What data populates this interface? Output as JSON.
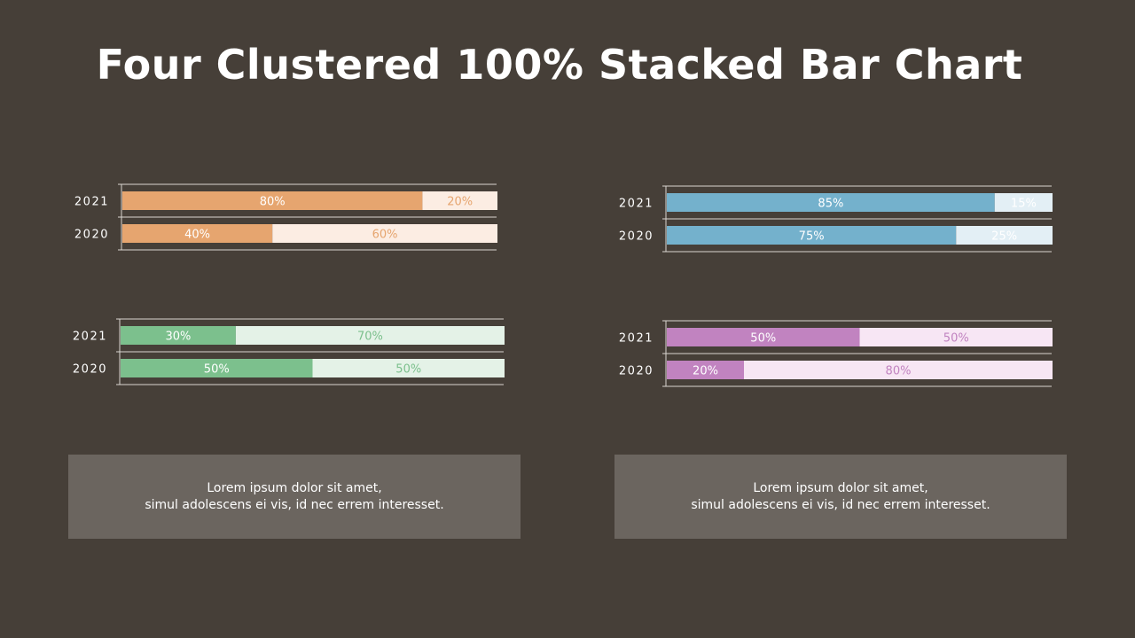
{
  "title": "Four Clustered 100% Stacked Bar Chart",
  "chart_data": [
    {
      "type": "bar",
      "orientation": "horizontal",
      "stacked": "percent",
      "categories": [
        "2021",
        "2020"
      ],
      "series": [
        {
          "values": [
            80,
            40
          ],
          "labels": [
            "80%",
            "40%"
          ],
          "color": "#e6a56f",
          "label_color": "#ffffff"
        },
        {
          "values": [
            20,
            60
          ],
          "labels": [
            "20%",
            "60%"
          ],
          "color": "#fcede3",
          "label_color": "#e6a56f"
        }
      ]
    },
    {
      "type": "bar",
      "orientation": "horizontal",
      "stacked": "percent",
      "categories": [
        "2021",
        "2020"
      ],
      "series": [
        {
          "values": [
            85,
            75
          ],
          "labels": [
            "85%",
            "75%"
          ],
          "color": "#74b1cc",
          "label_color": "#ffffff"
        },
        {
          "values": [
            15,
            25
          ],
          "labels": [
            "15%",
            "25%"
          ],
          "color": "#e3eff5",
          "label_color": "#ffffff"
        }
      ]
    },
    {
      "type": "bar",
      "orientation": "horizontal",
      "stacked": "percent",
      "categories": [
        "2021",
        "2020"
      ],
      "series": [
        {
          "values": [
            30,
            50
          ],
          "labels": [
            "30%",
            "50%"
          ],
          "color": "#7cc08d",
          "label_color": "#ffffff"
        },
        {
          "values": [
            70,
            50
          ],
          "labels": [
            "70%",
            "50%"
          ],
          "color": "#e4f2e7",
          "label_color": "#7cc08d"
        }
      ]
    },
    {
      "type": "bar",
      "orientation": "horizontal",
      "stacked": "percent",
      "categories": [
        "2021",
        "2020"
      ],
      "series": [
        {
          "values": [
            50,
            20
          ],
          "labels": [
            "50%",
            "20%"
          ],
          "color": "#c183c0",
          "label_color": "#ffffff"
        },
        {
          "values": [
            50,
            80
          ],
          "labels": [
            "50%",
            "80%"
          ],
          "color": "#f7e6f4",
          "label_color": "#c183c0"
        }
      ]
    }
  ],
  "notes": [
    {
      "line1": "Lorem ipsum dolor sit amet,",
      "line2": "simul adolescens ei vis, id nec errem interesset."
    },
    {
      "line1": "Lorem ipsum dolor sit amet,",
      "line2": "simul adolescens ei vis, id nec errem interesset."
    }
  ]
}
